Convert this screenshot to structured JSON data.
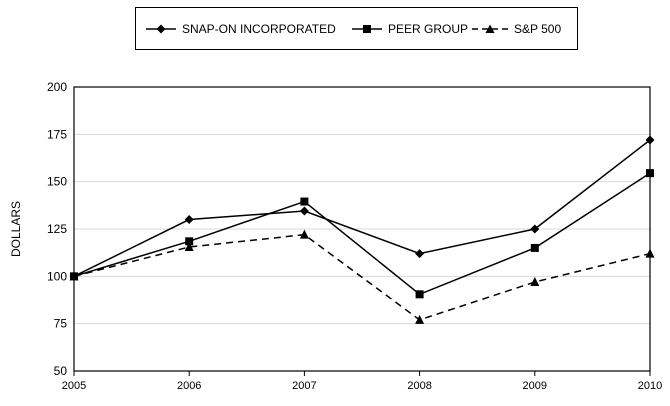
{
  "chart_data": {
    "type": "line",
    "x": [
      "2005",
      "2006",
      "2007",
      "2008",
      "2009",
      "2010"
    ],
    "ylabel": "DOLLARS",
    "ylim": [
      50,
      200
    ],
    "yticks": [
      50,
      75,
      100,
      125,
      150,
      175,
      200
    ],
    "grid": true,
    "legend_position": "top-center",
    "series": [
      {
        "name": "SNAP-ON INCORPORATED",
        "marker": "diamond",
        "line_style": "solid",
        "values": [
          100,
          130,
          134.5,
          112,
          125,
          172
        ]
      },
      {
        "name": "PEER GROUP",
        "marker": "square",
        "line_style": "solid",
        "values": [
          100,
          118.5,
          139.5,
          90.5,
          115,
          154.5
        ]
      },
      {
        "name": "S&P 500",
        "marker": "triangle",
        "line_style": "dashed",
        "values": [
          100,
          115.5,
          122,
          77,
          97,
          112
        ]
      }
    ]
  }
}
